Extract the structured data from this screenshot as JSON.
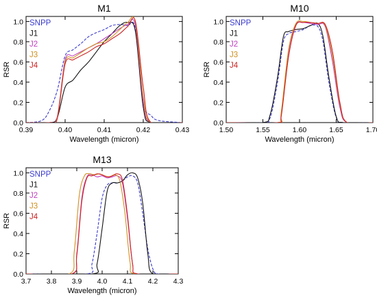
{
  "chart_data": [
    {
      "type": "line",
      "title": "M1",
      "xlabel": "Wavelength (micron)",
      "ylabel": "RSR",
      "xlim": [
        0.39,
        0.43
      ],
      "ylim": [
        0,
        1.05
      ],
      "xticks": [
        "0.39",
        "0.40",
        "0.41",
        "0.42",
        "0.43"
      ],
      "yticks": [
        "0.0",
        "0.2",
        "0.4",
        "0.6",
        "0.8",
        "1.0"
      ],
      "legend_position": "top-left",
      "series": [
        {
          "name": "SNPP",
          "color": "#3a3acc",
          "dash": "dashed",
          "x": [
            0.39,
            0.394,
            0.396,
            0.398,
            0.4,
            0.402,
            0.404,
            0.406,
            0.408,
            0.41,
            0.412,
            0.414,
            0.416,
            0.418,
            0.42,
            0.422,
            0.424,
            0.43
          ],
          "y": [
            0.0,
            0.02,
            0.12,
            0.32,
            0.66,
            0.72,
            0.78,
            0.85,
            0.89,
            0.92,
            0.96,
            0.97,
            0.96,
            0.93,
            0.2,
            0.07,
            0.02,
            0.0
          ]
        },
        {
          "name": "J1",
          "color": "#111111",
          "dash": "solid",
          "x": [
            0.39,
            0.396,
            0.398,
            0.4,
            0.402,
            0.404,
            0.406,
            0.408,
            0.41,
            0.412,
            0.414,
            0.416,
            0.418,
            0.42,
            0.422,
            0.43
          ],
          "y": [
            0.0,
            0.0,
            0.05,
            0.35,
            0.42,
            0.52,
            0.6,
            0.7,
            0.8,
            0.88,
            0.96,
            0.99,
            0.9,
            0.15,
            0.0,
            0.0
          ]
        },
        {
          "name": "J2",
          "color": "#c040c0",
          "dash": "solid",
          "x": [
            0.39,
            0.396,
            0.398,
            0.4,
            0.402,
            0.404,
            0.406,
            0.408,
            0.41,
            0.412,
            0.414,
            0.416,
            0.418,
            0.42,
            0.422,
            0.43
          ],
          "y": [
            0.0,
            0.0,
            0.06,
            0.62,
            0.66,
            0.7,
            0.74,
            0.78,
            0.83,
            0.88,
            0.93,
            0.97,
            0.96,
            0.2,
            0.0,
            0.0
          ]
        },
        {
          "name": "J3",
          "color": "#d09020",
          "dash": "solid",
          "x": [
            0.39,
            0.396,
            0.398,
            0.4,
            0.402,
            0.404,
            0.406,
            0.408,
            0.41,
            0.412,
            0.414,
            0.416,
            0.418,
            0.42,
            0.422,
            0.43
          ],
          "y": [
            0.0,
            0.0,
            0.05,
            0.6,
            0.64,
            0.69,
            0.74,
            0.78,
            0.8,
            0.85,
            0.92,
            0.99,
            0.99,
            0.25,
            0.0,
            0.0
          ]
        },
        {
          "name": "J4",
          "color": "#cc2222",
          "dash": "solid",
          "x": [
            0.39,
            0.396,
            0.398,
            0.4,
            0.402,
            0.404,
            0.406,
            0.408,
            0.41,
            0.412,
            0.414,
            0.416,
            0.418,
            0.42,
            0.422,
            0.43
          ],
          "y": [
            0.0,
            0.0,
            0.04,
            0.58,
            0.62,
            0.66,
            0.7,
            0.75,
            0.78,
            0.83,
            0.88,
            0.95,
            1.0,
            0.35,
            0.0,
            0.0
          ]
        }
      ]
    },
    {
      "type": "line",
      "title": "M10",
      "xlabel": "Wavelength (micron)",
      "ylabel": "RSR",
      "xlim": [
        1.5,
        1.7
      ],
      "ylim": [
        0,
        1.05
      ],
      "xticks": [
        "1.50",
        "1.55",
        "1.60",
        "1.65",
        "1.70"
      ],
      "yticks": [
        "0.0",
        "0.2",
        "0.4",
        "0.6",
        "0.8",
        "1.0"
      ],
      "legend_position": "top-left",
      "series": [
        {
          "name": "SNPP",
          "color": "#3a3acc",
          "dash": "dashed",
          "x": [
            1.5,
            1.55,
            1.56,
            1.57,
            1.578,
            1.585,
            1.595,
            1.605,
            1.615,
            1.625,
            1.632,
            1.64,
            1.65,
            1.66,
            1.7
          ],
          "y": [
            0.0,
            0.0,
            0.05,
            0.4,
            0.8,
            0.88,
            0.9,
            0.92,
            0.96,
            0.95,
            0.8,
            0.4,
            0.05,
            0.0,
            0.0
          ]
        },
        {
          "name": "J1",
          "color": "#111111",
          "dash": "solid",
          "x": [
            1.5,
            1.55,
            1.56,
            1.57,
            1.578,
            1.585,
            1.595,
            1.605,
            1.615,
            1.625,
            1.632,
            1.64,
            1.65,
            1.66,
            1.7
          ],
          "y": [
            0.0,
            0.0,
            0.08,
            0.45,
            0.85,
            0.9,
            0.92,
            0.93,
            0.96,
            0.98,
            0.85,
            0.45,
            0.06,
            0.0,
            0.0
          ]
        },
        {
          "name": "J2",
          "color": "#c040c0",
          "dash": "solid",
          "x": [
            1.5,
            1.57,
            1.575,
            1.585,
            1.595,
            1.605,
            1.615,
            1.625,
            1.635,
            1.645,
            1.655,
            1.665,
            1.7
          ],
          "y": [
            0.0,
            0.0,
            0.08,
            0.7,
            0.97,
            0.99,
            0.98,
            0.97,
            0.95,
            0.6,
            0.15,
            0.0,
            0.0
          ]
        },
        {
          "name": "J3",
          "color": "#d09020",
          "dash": "solid",
          "x": [
            1.5,
            1.57,
            1.575,
            1.585,
            1.595,
            1.605,
            1.615,
            1.625,
            1.635,
            1.645,
            1.655,
            1.665,
            1.7
          ],
          "y": [
            0.0,
            0.0,
            0.1,
            0.72,
            0.98,
            1.0,
            0.99,
            0.98,
            0.96,
            0.65,
            0.18,
            0.0,
            0.0
          ]
        },
        {
          "name": "J4",
          "color": "#cc2222",
          "dash": "solid",
          "x": [
            1.5,
            1.57,
            1.575,
            1.585,
            1.595,
            1.605,
            1.615,
            1.625,
            1.635,
            1.645,
            1.655,
            1.665,
            1.7
          ],
          "y": [
            0.0,
            0.0,
            0.06,
            0.65,
            0.96,
            0.99,
            0.99,
            0.98,
            0.97,
            0.7,
            0.2,
            0.0,
            0.0
          ]
        }
      ]
    },
    {
      "type": "line",
      "title": "M13",
      "xlabel": "Wavelength (micron)",
      "ylabel": "RSR",
      "xlim": [
        3.7,
        4.3
      ],
      "ylim": [
        0,
        1.05
      ],
      "xticks": [
        "3.7",
        "3.8",
        "3.9",
        "4.0",
        "4.1",
        "4.2",
        "4.3"
      ],
      "yticks": [
        "0.0",
        "0.2",
        "0.4",
        "0.6",
        "0.8",
        "1.0"
      ],
      "legend_position": "top-left",
      "series": [
        {
          "name": "SNPP",
          "color": "#3a3acc",
          "dash": "dashed",
          "x": [
            3.7,
            3.94,
            3.96,
            3.98,
            4.0,
            4.02,
            4.04,
            4.06,
            4.08,
            4.1,
            4.12,
            4.14,
            4.16,
            4.18,
            4.2,
            4.22,
            4.3
          ],
          "y": [
            0.0,
            0.0,
            0.1,
            0.4,
            0.75,
            0.88,
            0.9,
            0.9,
            0.92,
            0.96,
            0.97,
            0.9,
            0.6,
            0.25,
            0.05,
            0.0,
            0.0
          ]
        },
        {
          "name": "J1",
          "color": "#111111",
          "dash": "solid",
          "x": [
            3.7,
            3.96,
            3.98,
            4.0,
            4.02,
            4.04,
            4.06,
            4.08,
            4.1,
            4.12,
            4.14,
            4.16,
            4.18,
            4.2,
            4.3
          ],
          "y": [
            0.0,
            0.0,
            0.1,
            0.45,
            0.82,
            0.9,
            0.9,
            0.92,
            0.98,
            1.0,
            0.95,
            0.7,
            0.2,
            0.0,
            0.0
          ]
        },
        {
          "name": "J2",
          "color": "#c040c0",
          "dash": "solid",
          "x": [
            3.7,
            3.88,
            3.9,
            3.92,
            3.94,
            3.96,
            3.98,
            4.0,
            4.02,
            4.04,
            4.06,
            4.08,
            4.1,
            4.12,
            4.14,
            4.3
          ],
          "y": [
            0.0,
            0.0,
            0.2,
            0.75,
            0.96,
            0.98,
            0.96,
            0.97,
            0.95,
            0.96,
            0.97,
            0.9,
            0.55,
            0.1,
            0.0,
            0.0
          ]
        },
        {
          "name": "J3",
          "color": "#d09020",
          "dash": "solid",
          "x": [
            3.7,
            3.87,
            3.89,
            3.91,
            3.93,
            3.95,
            3.97,
            3.99,
            4.01,
            4.03,
            4.05,
            4.07,
            4.09,
            4.11,
            4.13,
            4.3
          ],
          "y": [
            0.0,
            0.0,
            0.22,
            0.78,
            0.97,
            0.99,
            0.98,
            0.99,
            0.97,
            0.96,
            0.98,
            0.92,
            0.6,
            0.12,
            0.0,
            0.0
          ]
        },
        {
          "name": "J4",
          "color": "#cc2222",
          "dash": "solid",
          "x": [
            3.7,
            3.88,
            3.9,
            3.92,
            3.94,
            3.96,
            3.98,
            4.0,
            4.02,
            4.04,
            4.06,
            4.08,
            4.1,
            4.12,
            4.14,
            4.3
          ],
          "y": [
            0.0,
            0.0,
            0.18,
            0.72,
            0.95,
            0.97,
            0.99,
            0.98,
            0.96,
            0.97,
            0.99,
            0.93,
            0.58,
            0.1,
            0.0,
            0.0
          ]
        }
      ]
    }
  ]
}
